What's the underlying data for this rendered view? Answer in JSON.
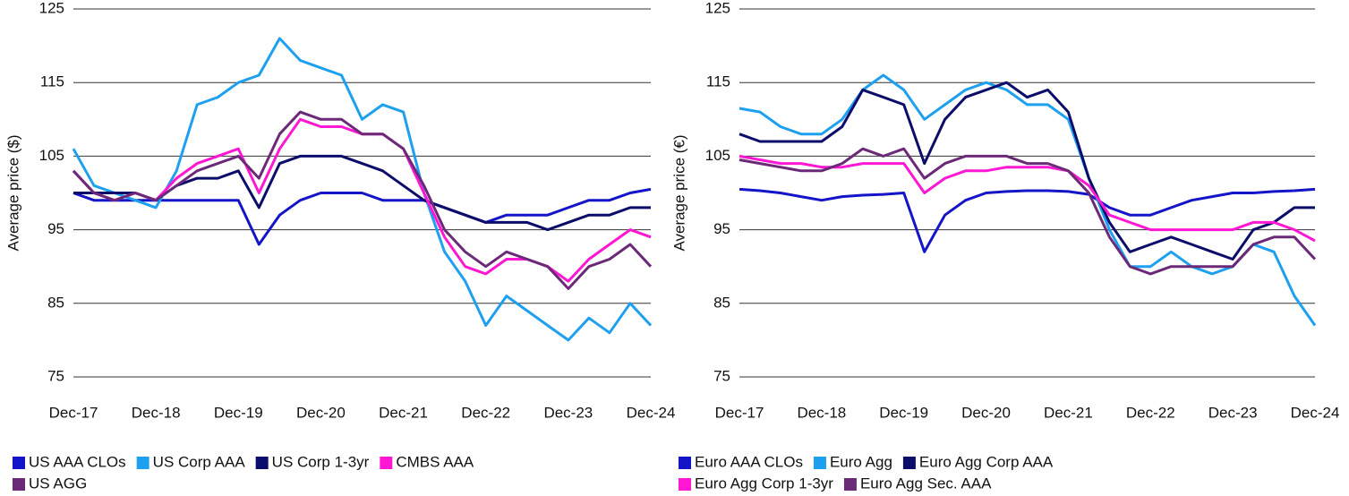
{
  "chart_data": [
    {
      "type": "line",
      "y_label": "Average price ($)",
      "categories": [
        "Dec-17",
        null,
        null,
        null,
        "Dec-18",
        null,
        null,
        null,
        "Dec-19",
        null,
        null,
        null,
        "Dec-20",
        null,
        null,
        null,
        "Dec-21",
        null,
        null,
        null,
        "Dec-22",
        null,
        null,
        null,
        "Dec-23",
        null,
        null,
        null,
        "Dec-24"
      ],
      "ylim": [
        75,
        125
      ],
      "yticks": [
        75,
        85,
        95,
        105,
        115,
        125
      ],
      "grid": true,
      "series": [
        {
          "name": "US AAA CLOs",
          "color": "#1414c8",
          "values": [
            100,
            99,
            99,
            99,
            99,
            99,
            99,
            99,
            99,
            93,
            97,
            99,
            100,
            100,
            100,
            99,
            99,
            99,
            98,
            97,
            96,
            97,
            97,
            97,
            98,
            99,
            99,
            100,
            100.5
          ]
        },
        {
          "name": "US Corp AAA",
          "color": "#1ea0f0",
          "values": [
            106,
            101,
            100,
            99,
            98,
            103,
            112,
            113,
            115,
            116,
            121,
            118,
            117,
            116,
            110,
            112,
            111,
            100,
            92,
            88,
            82,
            86,
            84,
            82,
            80,
            83,
            81,
            85,
            82
          ]
        },
        {
          "name": "US Corp 1-3yr",
          "color": "#0c0c6a",
          "values": [
            100,
            100,
            100,
            100,
            99,
            101,
            102,
            102,
            103,
            98,
            104,
            105,
            105,
            105,
            104,
            103,
            101,
            99,
            98,
            97,
            96,
            96,
            96,
            95,
            96,
            97,
            97,
            98,
            98
          ]
        },
        {
          "name": "CMBS AAA",
          "color": "#ff17d3",
          "values": [
            103,
            100,
            99,
            100,
            99,
            102,
            104,
            105,
            106,
            100,
            106,
            110,
            109,
            109,
            108,
            108,
            106,
            100,
            94,
            90,
            89,
            91,
            91,
            90,
            88,
            91,
            93,
            95,
            94
          ]
        },
        {
          "name": "US AGG",
          "color": "#6b2a78",
          "values": [
            103,
            100,
            99,
            100,
            99,
            101,
            103,
            104,
            105,
            102,
            108,
            111,
            110,
            110,
            108,
            108,
            106,
            101,
            95,
            92,
            90,
            92,
            91,
            90,
            87,
            90,
            91,
            93,
            90
          ]
        }
      ]
    },
    {
      "type": "line",
      "y_label": "Average price (€)",
      "categories": [
        "Dec-17",
        null,
        null,
        null,
        "Dec-18",
        null,
        null,
        null,
        "Dec-19",
        null,
        null,
        null,
        "Dec-20",
        null,
        null,
        null,
        "Dec-21",
        null,
        null,
        null,
        "Dec-22",
        null,
        null,
        null,
        "Dec-23",
        null,
        null,
        null,
        "Dec-24"
      ],
      "ylim": [
        75,
        125
      ],
      "yticks": [
        75,
        85,
        95,
        105,
        115,
        125
      ],
      "grid": true,
      "series": [
        {
          "name": "Euro AAA CLOs",
          "color": "#1414c8",
          "values": [
            100.5,
            100.3,
            100,
            99.5,
            99,
            99.5,
            99.7,
            99.8,
            100,
            92,
            97,
            99,
            100,
            100.2,
            100.3,
            100.3,
            100.2,
            99.8,
            98,
            97,
            97,
            98,
            99,
            99.5,
            100,
            100,
            100.2,
            100.3,
            100.5
          ]
        },
        {
          "name": "Euro Agg",
          "color": "#1ea0f0",
          "values": [
            111.5,
            111,
            109,
            108,
            108,
            110,
            114,
            116,
            114,
            110,
            112,
            114,
            115,
            114,
            112,
            112,
            110,
            102,
            95,
            90,
            90,
            92,
            90,
            89,
            90,
            93,
            92,
            86,
            82
          ]
        },
        {
          "name": "Euro Agg Corp AAA",
          "color": "#0c0c6a",
          "values": [
            108,
            107,
            107,
            107,
            107,
            109,
            114,
            113,
            112,
            104,
            110,
            113,
            114,
            115,
            113,
            114,
            111,
            102,
            96,
            92,
            93,
            94,
            93,
            92,
            91,
            95,
            96,
            98,
            98
          ]
        },
        {
          "name": "Euro Agg Corp 1-3yr",
          "color": "#ff17d3",
          "values": [
            105,
            104.5,
            104,
            104,
            103.5,
            103.5,
            104,
            104,
            104,
            100,
            102,
            103,
            103,
            103.5,
            103.5,
            103.5,
            103,
            101,
            97,
            96,
            95,
            95,
            95,
            95,
            95,
            96,
            96,
            95,
            93.5
          ]
        },
        {
          "name": "Euro Agg Sec. AAA",
          "color": "#6b2a78",
          "values": [
            104.5,
            104,
            103.5,
            103,
            103,
            104,
            106,
            105,
            106,
            102,
            104,
            105,
            105,
            105,
            104,
            104,
            103,
            100,
            94,
            90,
            89,
            90,
            90,
            90,
            90,
            93,
            94,
            94,
            91
          ]
        }
      ]
    }
  ]
}
